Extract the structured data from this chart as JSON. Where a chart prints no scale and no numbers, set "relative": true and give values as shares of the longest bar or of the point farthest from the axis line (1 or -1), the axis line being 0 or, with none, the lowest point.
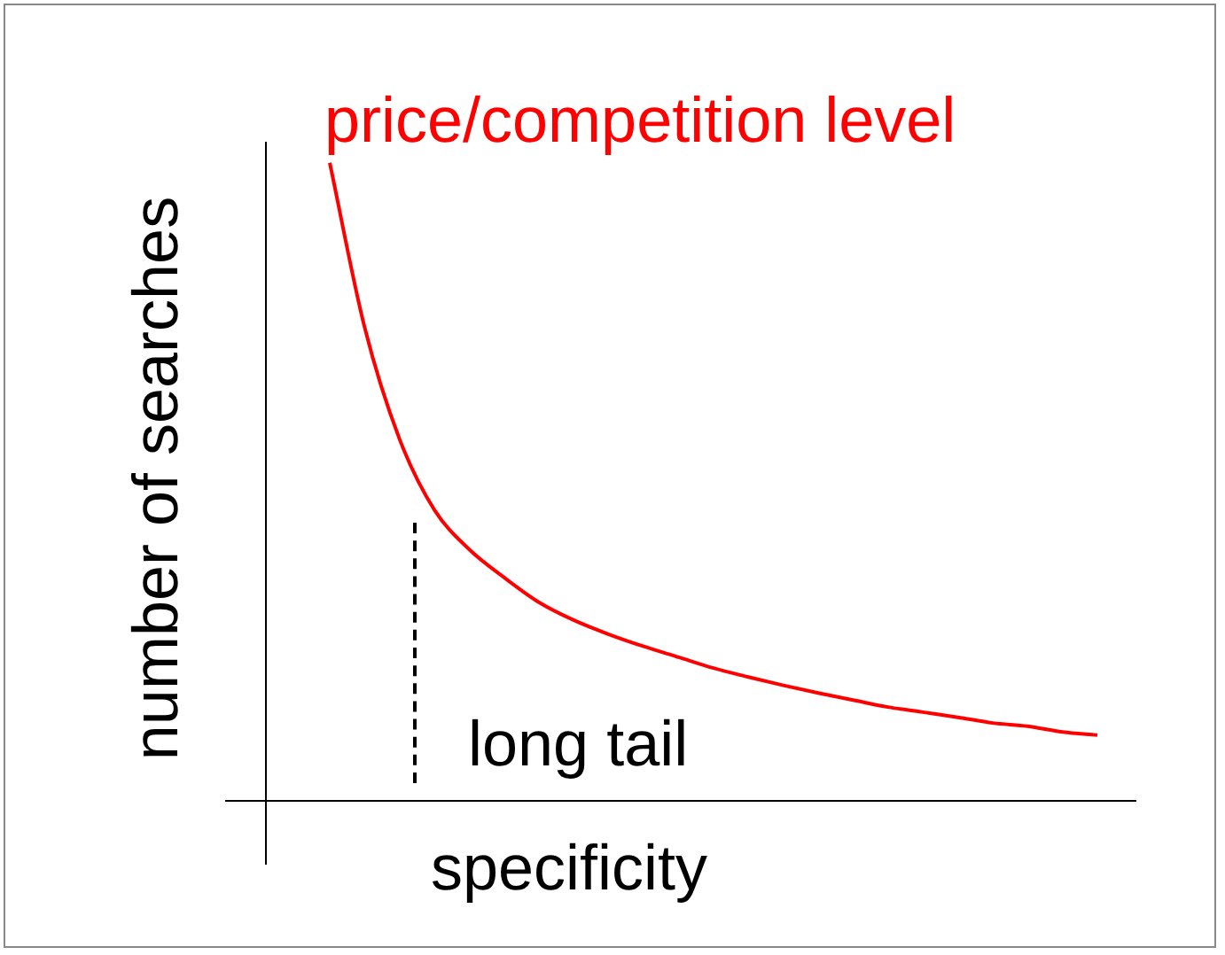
{
  "chart_data": {
    "type": "line",
    "relative": true,
    "xlabel": "specificity",
    "ylabel": "number of searches",
    "marker": "none",
    "categories": [
      null,
      null,
      null,
      null,
      null,
      null,
      null,
      null,
      null,
      null,
      null,
      null,
      null,
      null,
      null,
      null,
      null,
      null,
      null,
      null,
      null,
      null,
      null
    ],
    "series": [
      {
        "name": "price/competition level",
        "color": "#ff0000",
        "values": [
          1,
          0.742,
          0.567,
          0.456,
          0.394,
          0.35,
          0.311,
          0.283,
          0.261,
          0.242,
          0.225,
          0.208,
          0.194,
          0.181,
          0.169,
          0.158,
          0.147,
          0.139,
          0.131,
          0.122,
          0.117,
          0.108,
          0.103
        ]
      }
    ],
    "annotations": [
      "long tail"
    ]
  }
}
